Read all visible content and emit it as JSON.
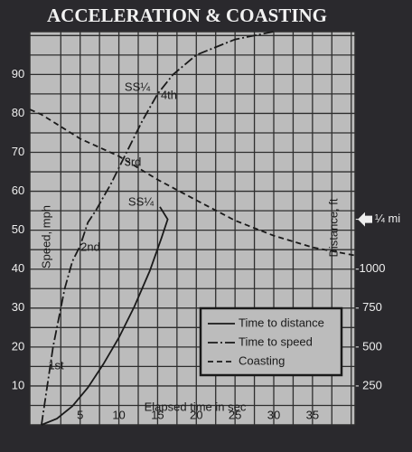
{
  "chart_data": {
    "type": "line",
    "title": "ACCELERATION & COASTING",
    "x_label": "Elapsed time in sec",
    "y_label": "Speed, mph",
    "y2_label": "Distance, ft",
    "xlim": [
      -1.5,
      40.5
    ],
    "ylim": [
      0,
      101
    ],
    "y2lim": [
      0,
      2525
    ],
    "xticks": [
      5,
      10,
      15,
      20,
      25,
      30,
      35
    ],
    "yticks": [
      10,
      20,
      30,
      40,
      50,
      60,
      70,
      80,
      90
    ],
    "y2ticks": [
      250,
      500,
      750,
      1000,
      {
        "value": 1320,
        "label": "¼ mi"
      }
    ],
    "grid": true,
    "legend": "lower right",
    "series": [
      {
        "name": "Time to distance",
        "color": "#1a1a1a",
        "dash": "solid",
        "axis": "y2",
        "x": [
          0,
          2,
          4,
          6,
          8,
          10,
          12,
          14,
          15.5,
          16.3,
          15.3
        ],
        "values": [
          0,
          40,
          120,
          240,
          390,
          560,
          760,
          990,
          1200,
          1320,
          1400
        ]
      },
      {
        "name": "Time to speed",
        "color": "#1a1a1a",
        "dash": "dashdot",
        "x": [
          0,
          1.5,
          3,
          4,
          5,
          6,
          7,
          9,
          11,
          13,
          15,
          17,
          20,
          25,
          30
        ],
        "values": [
          0,
          20,
          35,
          42,
          46,
          52,
          55,
          62,
          70,
          78,
          85,
          90,
          95,
          99,
          101
        ]
      },
      {
        "name": "Coasting",
        "color": "#1a1a1a",
        "dash": "dashed",
        "x": [
          -1.5,
          0,
          5,
          10,
          15,
          20,
          25,
          30,
          35,
          40.5
        ],
        "values": [
          81,
          79.7,
          73.5,
          69,
          63,
          57.7,
          52.5,
          48.6,
          45.6,
          43.5
        ]
      }
    ],
    "annotations": [
      "1st",
      "2nd",
      "3rd",
      "4th",
      "SS¼",
      "SS¼"
    ]
  }
}
